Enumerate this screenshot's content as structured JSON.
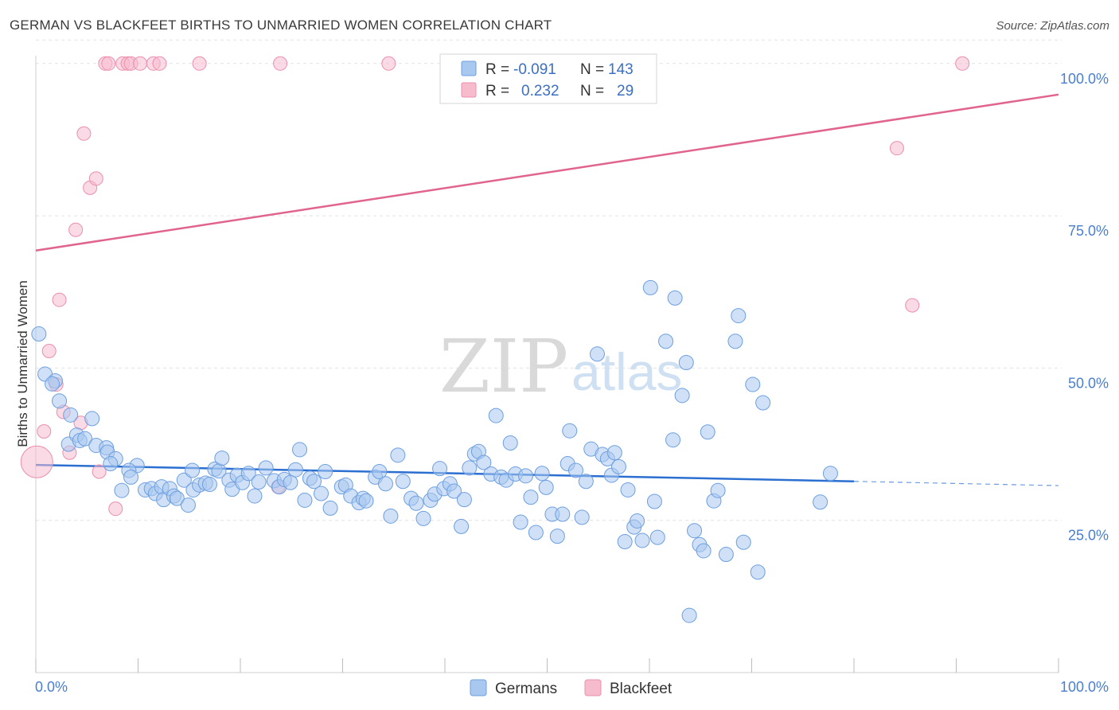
{
  "header": {
    "title": "GERMAN VS BLACKFEET BIRTHS TO UNMARRIED WOMEN CORRELATION CHART",
    "source": "Source: ZipAtlas.com"
  },
  "watermark": {
    "zip": "ZIP",
    "atlas": "atlas"
  },
  "legend_box": {
    "rows": [
      {
        "r_label": "R =",
        "r_value": "-0.091",
        "n_label": "N =",
        "n_value": "143"
      },
      {
        "r_label": "R =",
        "r_value": "0.232",
        "n_label": "N =",
        "n_value": "29"
      }
    ]
  },
  "bottom_legend": {
    "germans": "Germans",
    "blackfeet": "Blackfeet"
  },
  "colors": {
    "german_fill": "#a9c8f0",
    "german_stroke": "#6d9fe0",
    "german_line": "#2b6fd1",
    "blackfeet_fill": "#f6bccd",
    "blackfeet_stroke": "#ec8fac",
    "blackfeet_line": "#e0648e",
    "grid": "#e2e2e2",
    "tick_label": "#4a7fd0"
  },
  "chart_data": {
    "type": "scatter",
    "title": "GERMAN VS BLACKFEET BIRTHS TO UNMARRIED WOMEN CORRELATION CHART",
    "xlabel": "",
    "ylabel": "Births to Unmarried Women",
    "xlim": [
      0,
      100
    ],
    "ylim": [
      0,
      104
    ],
    "x_tick_labels": [
      "0.0%",
      "100.0%"
    ],
    "y_tick_labels": [
      "25.0%",
      "50.0%",
      "75.0%",
      "100.0%"
    ],
    "y_ticks": [
      25,
      50,
      75,
      100
    ],
    "grid": "horizontal dashed",
    "legend_position": "top-center",
    "series": [
      {
        "name": "Germans",
        "R": -0.091,
        "N": 143,
        "trend": {
          "x0": 0,
          "y0": 34.1,
          "x1": 80,
          "y1": 31.4,
          "dash_to_x": 100,
          "dash_to_y": 30.7
        },
        "points": [
          [
            0.3,
            55.6
          ],
          [
            0.9,
            49
          ],
          [
            1.9,
            47.9
          ],
          [
            1.6,
            47.4
          ],
          [
            2.3,
            44.6
          ],
          [
            3.4,
            42.3
          ],
          [
            5.5,
            41.7
          ],
          [
            3.2,
            37.5
          ],
          [
            4,
            39
          ],
          [
            4.3,
            38.1
          ],
          [
            4.8,
            38.4
          ],
          [
            5.9,
            37.3
          ],
          [
            6.9,
            36.9
          ],
          [
            7,
            36.2
          ],
          [
            7.8,
            35.1
          ],
          [
            7.3,
            34.3
          ],
          [
            9.9,
            34
          ],
          [
            9.1,
            33.2
          ],
          [
            9.3,
            32.1
          ],
          [
            8.4,
            29.9
          ],
          [
            10.7,
            30
          ],
          [
            11.3,
            30.2
          ],
          [
            11.7,
            29.4
          ],
          [
            12.3,
            30.5
          ],
          [
            12.5,
            28.4
          ],
          [
            13.1,
            30.2
          ],
          [
            13.5,
            29
          ],
          [
            13.8,
            28.6
          ],
          [
            14.5,
            31.6
          ],
          [
            14.9,
            27.5
          ],
          [
            15.4,
            30
          ],
          [
            15.3,
            33.2
          ],
          [
            16,
            30.8
          ],
          [
            16.6,
            31.1
          ],
          [
            17,
            30.9
          ],
          [
            17.5,
            33.4
          ],
          [
            17.9,
            33.1
          ],
          [
            18.2,
            35.2
          ],
          [
            18.9,
            31.6
          ],
          [
            19.2,
            30.1
          ],
          [
            19.7,
            32.4
          ],
          [
            20.2,
            31.2
          ],
          [
            20.8,
            32.7
          ],
          [
            21.4,
            29
          ],
          [
            21.8,
            31.3
          ],
          [
            22.5,
            33.6
          ],
          [
            23.3,
            31.5
          ],
          [
            23.8,
            30.5
          ],
          [
            24.3,
            31.7
          ],
          [
            24.9,
            31.2
          ],
          [
            25.4,
            33.3
          ],
          [
            25.8,
            36.6
          ],
          [
            26.3,
            28.3
          ],
          [
            26.8,
            31.9
          ],
          [
            27.2,
            31.4
          ],
          [
            27.9,
            29.4
          ],
          [
            28.3,
            33
          ],
          [
            28.8,
            27
          ],
          [
            29.9,
            30.5
          ],
          [
            30.3,
            30.8
          ],
          [
            30.8,
            29
          ],
          [
            31.6,
            27.9
          ],
          [
            32,
            28.6
          ],
          [
            32.3,
            28.2
          ],
          [
            33.2,
            32.1
          ],
          [
            33.6,
            33
          ],
          [
            34.2,
            31
          ],
          [
            34.7,
            25.7
          ],
          [
            35.4,
            35.7
          ],
          [
            35.9,
            31.4
          ],
          [
            36.7,
            28.6
          ],
          [
            37.2,
            27.8
          ],
          [
            37.9,
            25.3
          ],
          [
            38.6,
            28.3
          ],
          [
            39,
            29.3
          ],
          [
            39.5,
            33.5
          ],
          [
            39.9,
            30.2
          ],
          [
            40.5,
            31
          ],
          [
            40.9,
            29.8
          ],
          [
            41.6,
            24
          ],
          [
            41.9,
            28.4
          ],
          [
            42.4,
            33.6
          ],
          [
            42.9,
            35.9
          ],
          [
            43.3,
            36.3
          ],
          [
            43.8,
            34.5
          ],
          [
            44.5,
            32.6
          ],
          [
            45,
            42.2
          ],
          [
            45.5,
            32.1
          ],
          [
            46,
            31.6
          ],
          [
            46.4,
            37.7
          ],
          [
            46.9,
            32.6
          ],
          [
            47.4,
            24.7
          ],
          [
            47.9,
            32.3
          ],
          [
            48.4,
            28.8
          ],
          [
            48.9,
            23
          ],
          [
            49.5,
            32.7
          ],
          [
            49.9,
            30.4
          ],
          [
            50.5,
            26
          ],
          [
            51,
            22.4
          ],
          [
            51.5,
            26
          ],
          [
            52,
            34.3
          ],
          [
            52.2,
            39.7
          ],
          [
            52.8,
            33.2
          ],
          [
            53.4,
            25.5
          ],
          [
            53.8,
            31.4
          ],
          [
            54.3,
            36.7
          ],
          [
            54.9,
            52.3
          ],
          [
            55.4,
            35.8
          ],
          [
            55.9,
            35.1
          ],
          [
            56.3,
            32.4
          ],
          [
            56.6,
            36.1
          ],
          [
            57,
            33.8
          ],
          [
            57.6,
            21.5
          ],
          [
            57.9,
            30
          ],
          [
            58.5,
            23.9
          ],
          [
            58.8,
            24.9
          ],
          [
            59.3,
            21.7
          ],
          [
            60.1,
            63.2
          ],
          [
            60.5,
            28.1
          ],
          [
            60.8,
            22.2
          ],
          [
            61.6,
            54.4
          ],
          [
            62.3,
            38.2
          ],
          [
            62.5,
            61.5
          ],
          [
            63.2,
            45.5
          ],
          [
            63.6,
            50.9
          ],
          [
            64.4,
            23.3
          ],
          [
            64.9,
            21
          ],
          [
            65.3,
            20
          ],
          [
            65.7,
            39.5
          ],
          [
            66.3,
            28.2
          ],
          [
            66.7,
            29.9
          ],
          [
            67.5,
            19.4
          ],
          [
            68.4,
            54.4
          ],
          [
            68.7,
            58.6
          ],
          [
            69.2,
            21.4
          ],
          [
            70.1,
            47.3
          ],
          [
            70.6,
            16.5
          ],
          [
            71.1,
            44.3
          ],
          [
            63.9,
            9.4
          ],
          [
            76.7,
            28
          ],
          [
            77.7,
            32.7
          ]
        ]
      },
      {
        "name": "Blackfeet",
        "R": 0.232,
        "N": 29,
        "trend": {
          "x0": 0,
          "y0": 69.3,
          "x1": 100,
          "y1": 94.9
        },
        "points": [
          [
            0.1,
            34.6,
            "large"
          ],
          [
            0.8,
            39.6
          ],
          [
            1.3,
            52.8
          ],
          [
            2.0,
            47.3
          ],
          [
            2.3,
            61.2
          ],
          [
            2.7,
            42.8
          ],
          [
            3.3,
            36.1
          ],
          [
            4.4,
            41
          ],
          [
            4.7,
            88.5
          ],
          [
            5.3,
            79.6
          ],
          [
            5.9,
            81.1
          ],
          [
            6.2,
            33
          ],
          [
            3.9,
            72.7
          ],
          [
            7.8,
            26.9
          ],
          [
            6.8,
            100
          ],
          [
            7.1,
            100
          ],
          [
            8.5,
            100
          ],
          [
            9,
            100
          ],
          [
            9.3,
            100
          ],
          [
            10.2,
            100
          ],
          [
            11.5,
            100
          ],
          [
            12.1,
            100
          ],
          [
            16,
            100
          ],
          [
            23.9,
            100
          ],
          [
            23.7,
            30.5
          ],
          [
            34.5,
            100
          ],
          [
            90.6,
            100
          ],
          [
            84.2,
            86.1
          ],
          [
            85.7,
            60.3
          ]
        ]
      }
    ]
  }
}
